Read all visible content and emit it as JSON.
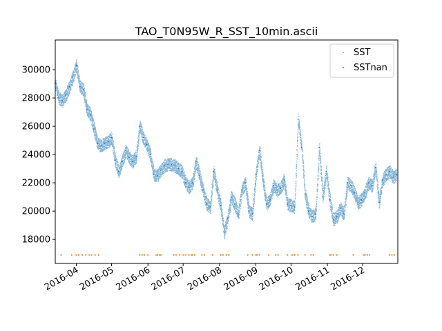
{
  "chart_data": {
    "type": "scatter",
    "title": "TAO_T0N95W_R_SST_10min.ascii",
    "xlabel": "",
    "ylabel": "",
    "x_range": [
      "2016-03-14",
      "2016-12-31"
    ],
    "ylim": [
      16300,
      32100
    ],
    "grid": false,
    "legend_position": "top-right",
    "x_ticks": [
      {
        "date": "2016-04-01",
        "label": "2016-04"
      },
      {
        "date": "2016-05-01",
        "label": "2016-05"
      },
      {
        "date": "2016-06-01",
        "label": "2016-06"
      },
      {
        "date": "2016-07-01",
        "label": "2016-07"
      },
      {
        "date": "2016-08-01",
        "label": "2016-08"
      },
      {
        "date": "2016-09-01",
        "label": "2016-09"
      },
      {
        "date": "2016-10-01",
        "label": "2016-10"
      },
      {
        "date": "2016-11-01",
        "label": "2016-11"
      },
      {
        "date": "2016-12-01",
        "label": "2016-12"
      }
    ],
    "y_ticks": [
      {
        "value": 18000,
        "label": "18000"
      },
      {
        "value": 20000,
        "label": "20000"
      },
      {
        "value": 22000,
        "label": "22000"
      },
      {
        "value": 24000,
        "label": "24000"
      },
      {
        "value": 26000,
        "label": "26000"
      },
      {
        "value": 28000,
        "label": "28000"
      },
      {
        "value": 30000,
        "label": "30000"
      }
    ],
    "series": [
      {
        "name": "SST",
        "color": "#1f77b4",
        "marker": "dot",
        "x": [
          "2016-03-14",
          "2016-03-17",
          "2016-03-20",
          "2016-03-23",
          "2016-03-26",
          "2016-03-29",
          "2016-04-01",
          "2016-04-04",
          "2016-04-07",
          "2016-04-10",
          "2016-04-13",
          "2016-04-16",
          "2016-04-19",
          "2016-04-22",
          "2016-04-25",
          "2016-04-28",
          "2016-05-01",
          "2016-05-04",
          "2016-05-07",
          "2016-05-10",
          "2016-05-13",
          "2016-05-16",
          "2016-05-19",
          "2016-05-22",
          "2016-05-25",
          "2016-05-28",
          "2016-05-31",
          "2016-06-03",
          "2016-06-06",
          "2016-06-09",
          "2016-06-12",
          "2016-06-15",
          "2016-06-18",
          "2016-06-21",
          "2016-06-24",
          "2016-06-27",
          "2016-06-30",
          "2016-07-03",
          "2016-07-06",
          "2016-07-09",
          "2016-07-12",
          "2016-07-15",
          "2016-07-18",
          "2016-07-21",
          "2016-07-24",
          "2016-07-27",
          "2016-07-30",
          "2016-08-02",
          "2016-08-05",
          "2016-08-08",
          "2016-08-11",
          "2016-08-14",
          "2016-08-17",
          "2016-08-20",
          "2016-08-23",
          "2016-08-26",
          "2016-08-29",
          "2016-09-01",
          "2016-09-04",
          "2016-09-07",
          "2016-09-10",
          "2016-09-13",
          "2016-09-16",
          "2016-09-19",
          "2016-09-22",
          "2016-09-25",
          "2016-09-28",
          "2016-10-01",
          "2016-10-04",
          "2016-10-07",
          "2016-10-10",
          "2016-10-13",
          "2016-10-16",
          "2016-10-19",
          "2016-10-22",
          "2016-10-25",
          "2016-10-28",
          "2016-10-31",
          "2016-11-03",
          "2016-11-06",
          "2016-11-09",
          "2016-11-12",
          "2016-11-15",
          "2016-11-18",
          "2016-11-21",
          "2016-11-24",
          "2016-11-27",
          "2016-11-30",
          "2016-12-03",
          "2016-12-06",
          "2016-12-09",
          "2016-12-12",
          "2016-12-15",
          "2016-12-18",
          "2016-12-21",
          "2016-12-24",
          "2016-12-27",
          "2016-12-30"
        ],
        "y": [
          29000,
          28000,
          27800,
          28200,
          28800,
          29500,
          30300,
          28800,
          28600,
          27200,
          26800,
          25800,
          24800,
          24600,
          24800,
          24900,
          25200,
          23600,
          22800,
          23500,
          24300,
          23800,
          23500,
          23900,
          26000,
          25200,
          24700,
          24000,
          22600,
          22500,
          22900,
          23200,
          23300,
          23300,
          23200,
          23000,
          22800,
          22000,
          21700,
          22000,
          23500,
          22500,
          21500,
          20500,
          20300,
          22800,
          21500,
          20400,
          18500,
          19500,
          21000,
          20500,
          19800,
          21500,
          22000,
          20000,
          19800,
          22600,
          24300,
          22200,
          20500,
          20800,
          21800,
          21500,
          21600,
          22200,
          20500,
          20400,
          20300,
          26500,
          24500,
          21200,
          20000,
          19600,
          19800,
          24500,
          21000,
          22800,
          20800,
          19400,
          19600,
          20200,
          19800,
          22000,
          21800,
          21300,
          20600,
          20800,
          21300,
          22000,
          21800,
          23100,
          20600,
          22200,
          22600,
          22800,
          22400,
          22600
        ]
      },
      {
        "name": "SSTnan",
        "color": "#ff7f0e",
        "marker": "dot",
        "x": [
          "2016-03-19",
          "2016-03-28",
          "2016-04-01",
          "2016-04-03",
          "2016-04-06",
          "2016-04-09",
          "2016-04-12",
          "2016-04-14",
          "2016-04-17",
          "2016-04-20",
          "2016-05-25",
          "2016-05-27",
          "2016-05-29",
          "2016-06-01",
          "2016-06-08",
          "2016-06-09",
          "2016-06-11",
          "2016-06-12",
          "2016-06-23",
          "2016-06-25",
          "2016-06-28",
          "2016-07-01",
          "2016-07-03",
          "2016-07-06",
          "2016-07-08",
          "2016-07-09",
          "2016-07-11",
          "2016-07-17",
          "2016-07-19",
          "2016-07-26",
          "2016-08-02",
          "2016-08-04",
          "2016-08-07",
          "2016-08-09",
          "2016-08-25",
          "2016-08-29",
          "2016-09-01",
          "2016-09-02",
          "2016-09-04",
          "2016-09-12",
          "2016-09-18",
          "2016-09-20",
          "2016-09-28",
          "2016-10-02",
          "2016-10-04",
          "2016-10-07",
          "2016-10-13",
          "2016-10-18",
          "2016-10-20",
          "2016-11-03",
          "2016-11-04",
          "2016-11-06",
          "2016-11-09",
          "2016-11-23",
          "2016-12-02",
          "2016-12-03",
          "2016-12-05",
          "2016-12-07",
          "2016-12-24",
          "2016-12-26",
          "2016-12-28"
        ],
        "y": [
          16900,
          16900,
          16900,
          16900,
          16900,
          16900,
          16900,
          16900,
          16900,
          16900,
          16900,
          16900,
          16900,
          16900,
          16900,
          16900,
          16900,
          16900,
          16900,
          16900,
          16900,
          16900,
          16900,
          16900,
          16900,
          16900,
          16900,
          16900,
          16900,
          16900,
          16900,
          16900,
          16900,
          16900,
          16900,
          16900,
          16900,
          16900,
          16900,
          16900,
          16900,
          16900,
          16900,
          16900,
          16900,
          16900,
          16900,
          16900,
          16900,
          16900,
          16900,
          16900,
          16900,
          16900,
          16900,
          16900,
          16900,
          16900,
          16900,
          16900,
          16900
        ]
      }
    ]
  }
}
